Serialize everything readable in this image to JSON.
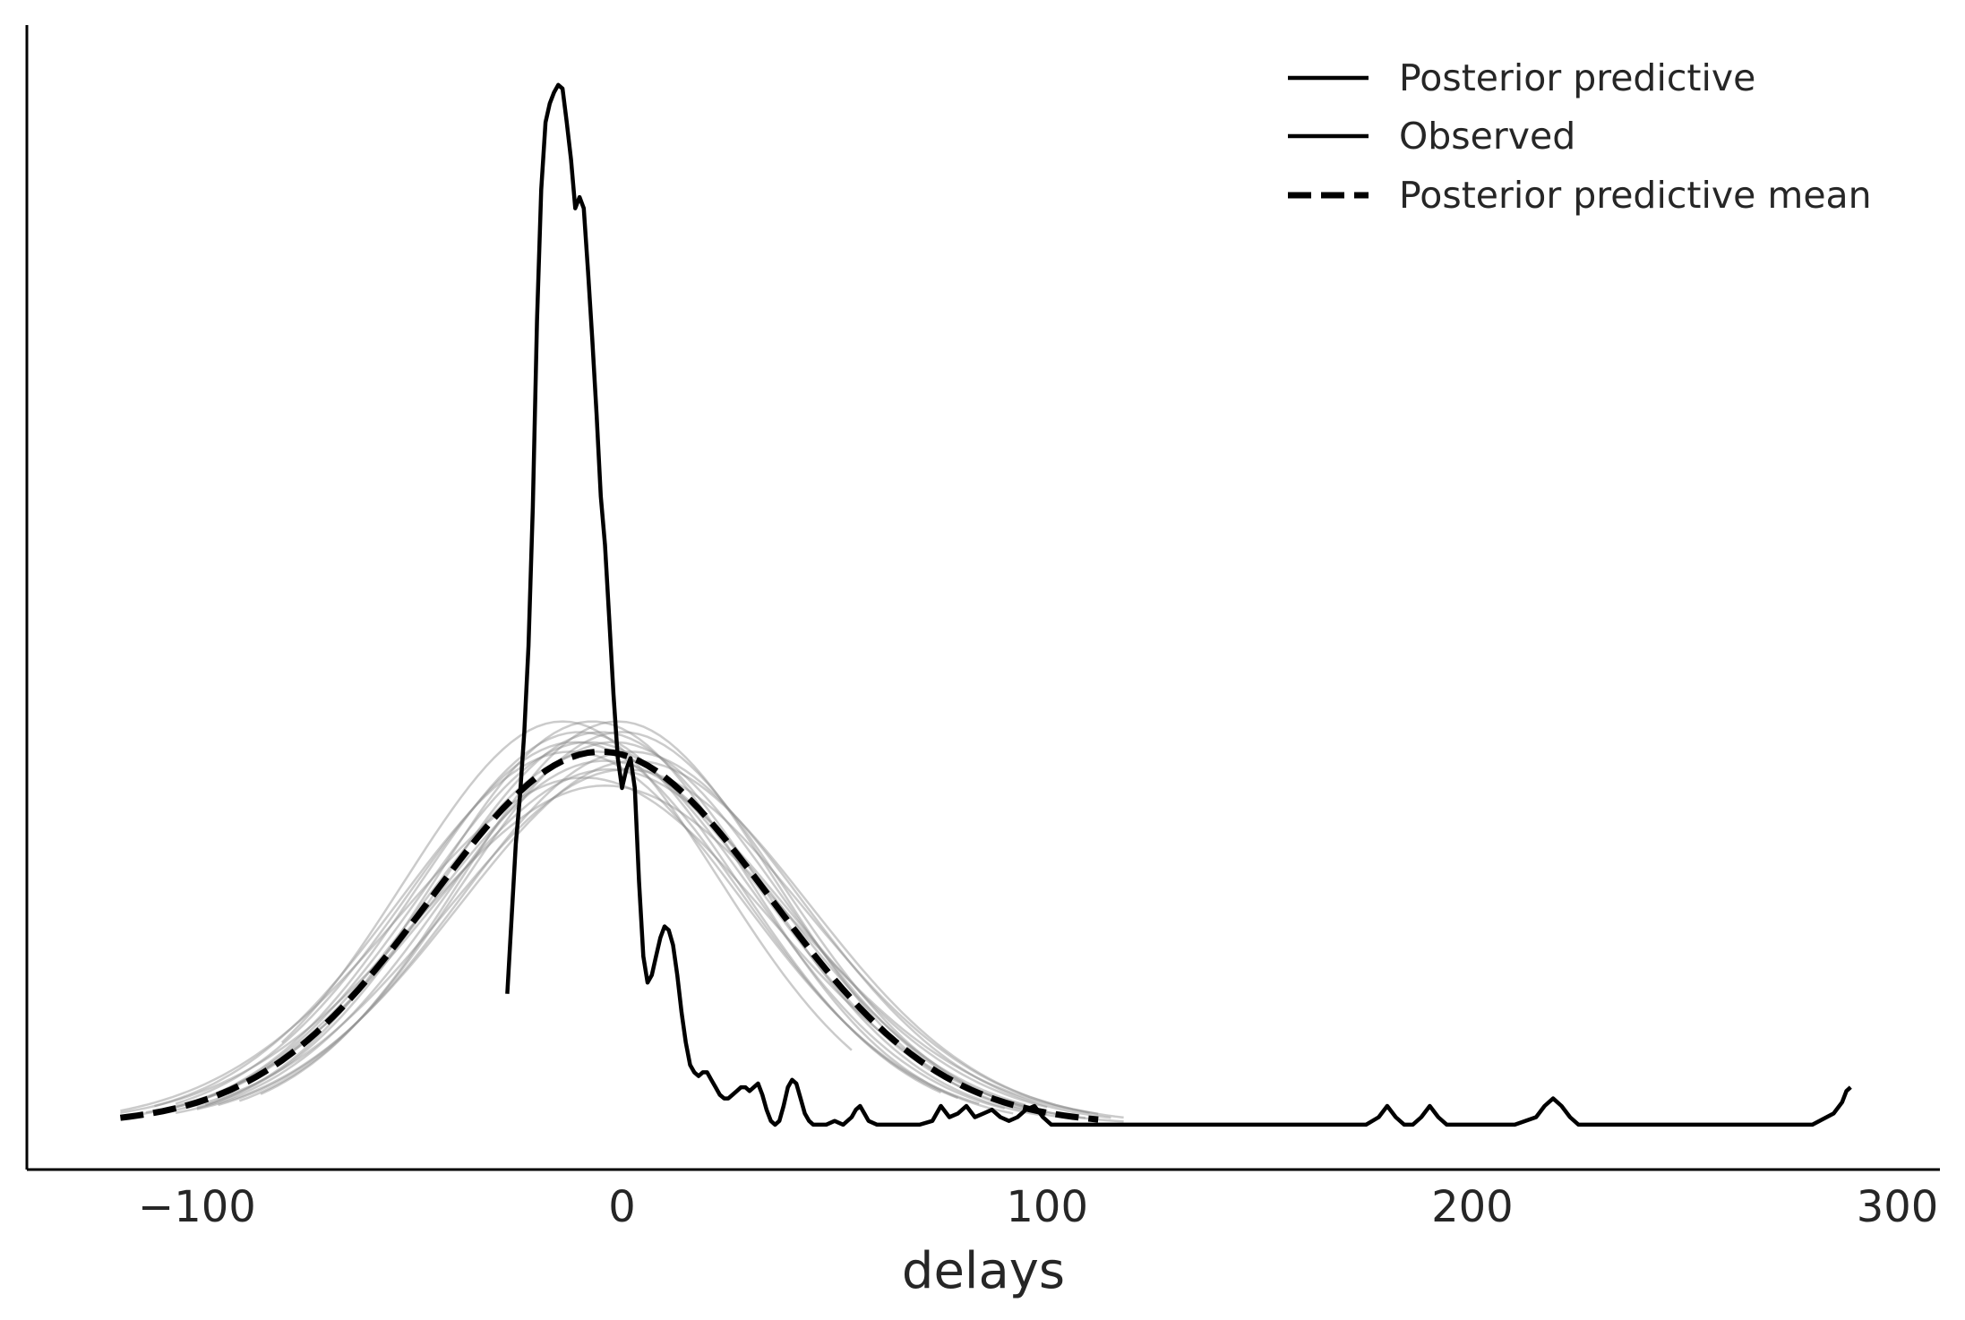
{
  "chart_data": {
    "type": "line",
    "title": "",
    "xlabel": "delays",
    "ylabel": "",
    "xlim": [
      -140,
      310
    ],
    "ylim": [
      -0.0012,
      0.0294
    ],
    "xticks": [
      -100,
      0,
      100,
      200,
      300
    ],
    "xtick_labels": [
      "−100",
      "0",
      "100",
      "200",
      "300"
    ],
    "grid": false,
    "legend_position": "top-right",
    "legend": [
      {
        "label": "Posterior predictive",
        "style": "solid",
        "color": "#000000"
      },
      {
        "label": "Observed",
        "style": "solid",
        "color": "#000000"
      },
      {
        "label": "Posterior predictive mean",
        "style": "dashed",
        "color": "#000000"
      }
    ],
    "colors": {
      "observed": "#000000",
      "mean": "#000000",
      "predictive": "#8c8c8c"
    },
    "observed": {
      "x": [
        -27,
        -25,
        -24,
        -23,
        -22,
        -21,
        -20,
        -19,
        -18,
        -17,
        -16,
        -15,
        -14,
        -13,
        -12,
        -11,
        -10,
        -9,
        -8,
        -7,
        -6,
        -5,
        -4,
        -3,
        -2,
        -1,
        0,
        1,
        2,
        3,
        4,
        5,
        6,
        7,
        8,
        9,
        10,
        11,
        12,
        13,
        14,
        15,
        16,
        17,
        18,
        19,
        20,
        21,
        22,
        23,
        24,
        25,
        26,
        27,
        28,
        29,
        30,
        31,
        32,
        33,
        34,
        35,
        36,
        37,
        38,
        39,
        40,
        41,
        42,
        43,
        44,
        45,
        46,
        47,
        48,
        50,
        52,
        54,
        55,
        56,
        57,
        58,
        60,
        65,
        70,
        73,
        75,
        77,
        79,
        81,
        83,
        85,
        87,
        89,
        91,
        93,
        95,
        97,
        99,
        101,
        103,
        110,
        120,
        140,
        160,
        175,
        178,
        180,
        182,
        184,
        186,
        188,
        190,
        192,
        194,
        200,
        210,
        215,
        217,
        219,
        221,
        223,
        225,
        228,
        240,
        260,
        280,
        285,
        287,
        288,
        289
      ],
      "values": [
        0.0035,
        0.0075,
        0.0088,
        0.0105,
        0.0128,
        0.0165,
        0.0215,
        0.025,
        0.0268,
        0.0273,
        0.0276,
        0.0278,
        0.0277,
        0.0268,
        0.0258,
        0.0245,
        0.0248,
        0.0245,
        0.0228,
        0.021,
        0.019,
        0.0168,
        0.0155,
        0.0135,
        0.0115,
        0.0098,
        0.009,
        0.0095,
        0.0098,
        0.009,
        0.0065,
        0.0045,
        0.0038,
        0.004,
        0.0045,
        0.005,
        0.0053,
        0.0052,
        0.0048,
        0.004,
        0.003,
        0.0022,
        0.0016,
        0.0014,
        0.0013,
        0.0014,
        0.0014,
        0.0012,
        0.001,
        0.0008,
        0.0007,
        0.0007,
        0.0008,
        0.0009,
        0.001,
        0.001,
        0.0009,
        0.001,
        0.0011,
        0.0008,
        0.0004,
        0.0001,
        0.0,
        0.0001,
        0.0005,
        0.001,
        0.0012,
        0.0011,
        0.0007,
        0.0003,
        0.0001,
        0.0,
        0.0,
        0.0,
        0.0,
        0.0001,
        0.0,
        0.0002,
        0.0004,
        0.0005,
        0.0003,
        0.0001,
        0.0,
        0.0,
        0.0,
        0.0001,
        0.0005,
        0.0002,
        0.0003,
        0.0005,
        0.0002,
        0.0003,
        0.0004,
        0.0002,
        0.0001,
        0.0002,
        0.0004,
        0.0005,
        0.0002,
        0.0,
        0.0,
        0.0,
        0.0,
        0.0,
        0.0,
        0.0,
        0.0002,
        0.0005,
        0.0002,
        0.0,
        0.0,
        0.0002,
        0.0005,
        0.0002,
        0.0,
        0.0,
        0.0,
        0.0002,
        0.0005,
        0.0007,
        0.0005,
        0.0002,
        0.0,
        0.0,
        0.0,
        0.0,
        0.0,
        0.0003,
        0.0006,
        0.0009,
        0.001
      ]
    },
    "posterior_predictive_mean": {
      "distribution": "normal",
      "mu": -5,
      "sigma": 40,
      "x_range": [
        -118,
        113
      ]
    },
    "posterior_predictive_samples": [
      {
        "mu": -14,
        "sigma": 37,
        "x_range": [
          -80,
          55
        ]
      },
      {
        "mu": -10,
        "sigma": 38,
        "x_range": [
          -95,
          75
        ]
      },
      {
        "mu": -8,
        "sigma": 39,
        "x_range": [
          -110,
          90
        ]
      },
      {
        "mu": -6,
        "sigma": 40,
        "x_range": [
          -100,
          100
        ]
      },
      {
        "mu": -4,
        "sigma": 41,
        "x_range": [
          -115,
          95
        ]
      },
      {
        "mu": -2,
        "sigma": 39,
        "x_range": [
          -105,
          110
        ]
      },
      {
        "mu": 0,
        "sigma": 38,
        "x_range": [
          -90,
          118
        ]
      },
      {
        "mu": -3,
        "sigma": 42,
        "x_range": [
          -112,
          100
        ]
      },
      {
        "mu": -7,
        "sigma": 37,
        "x_range": [
          -100,
          92
        ]
      },
      {
        "mu": 2,
        "sigma": 40,
        "x_range": [
          -95,
          115
        ]
      },
      {
        "mu": -12,
        "sigma": 40,
        "x_range": [
          -110,
          85
        ]
      },
      {
        "mu": 1,
        "sigma": 42,
        "x_range": [
          -108,
          112
        ]
      },
      {
        "mu": -9,
        "sigma": 43,
        "x_range": [
          -118,
          100
        ]
      },
      {
        "mu": -1,
        "sigma": 37,
        "x_range": [
          -85,
          105
        ]
      },
      {
        "mu": -5,
        "sigma": 38,
        "x_range": [
          -98,
          98
        ]
      },
      {
        "mu": 3,
        "sigma": 41,
        "x_range": [
          -100,
          118
        ]
      },
      {
        "mu": -11,
        "sigma": 39,
        "x_range": [
          -105,
          80
        ]
      },
      {
        "mu": -4,
        "sigma": 44,
        "x_range": [
          -118,
          110
        ]
      }
    ]
  }
}
